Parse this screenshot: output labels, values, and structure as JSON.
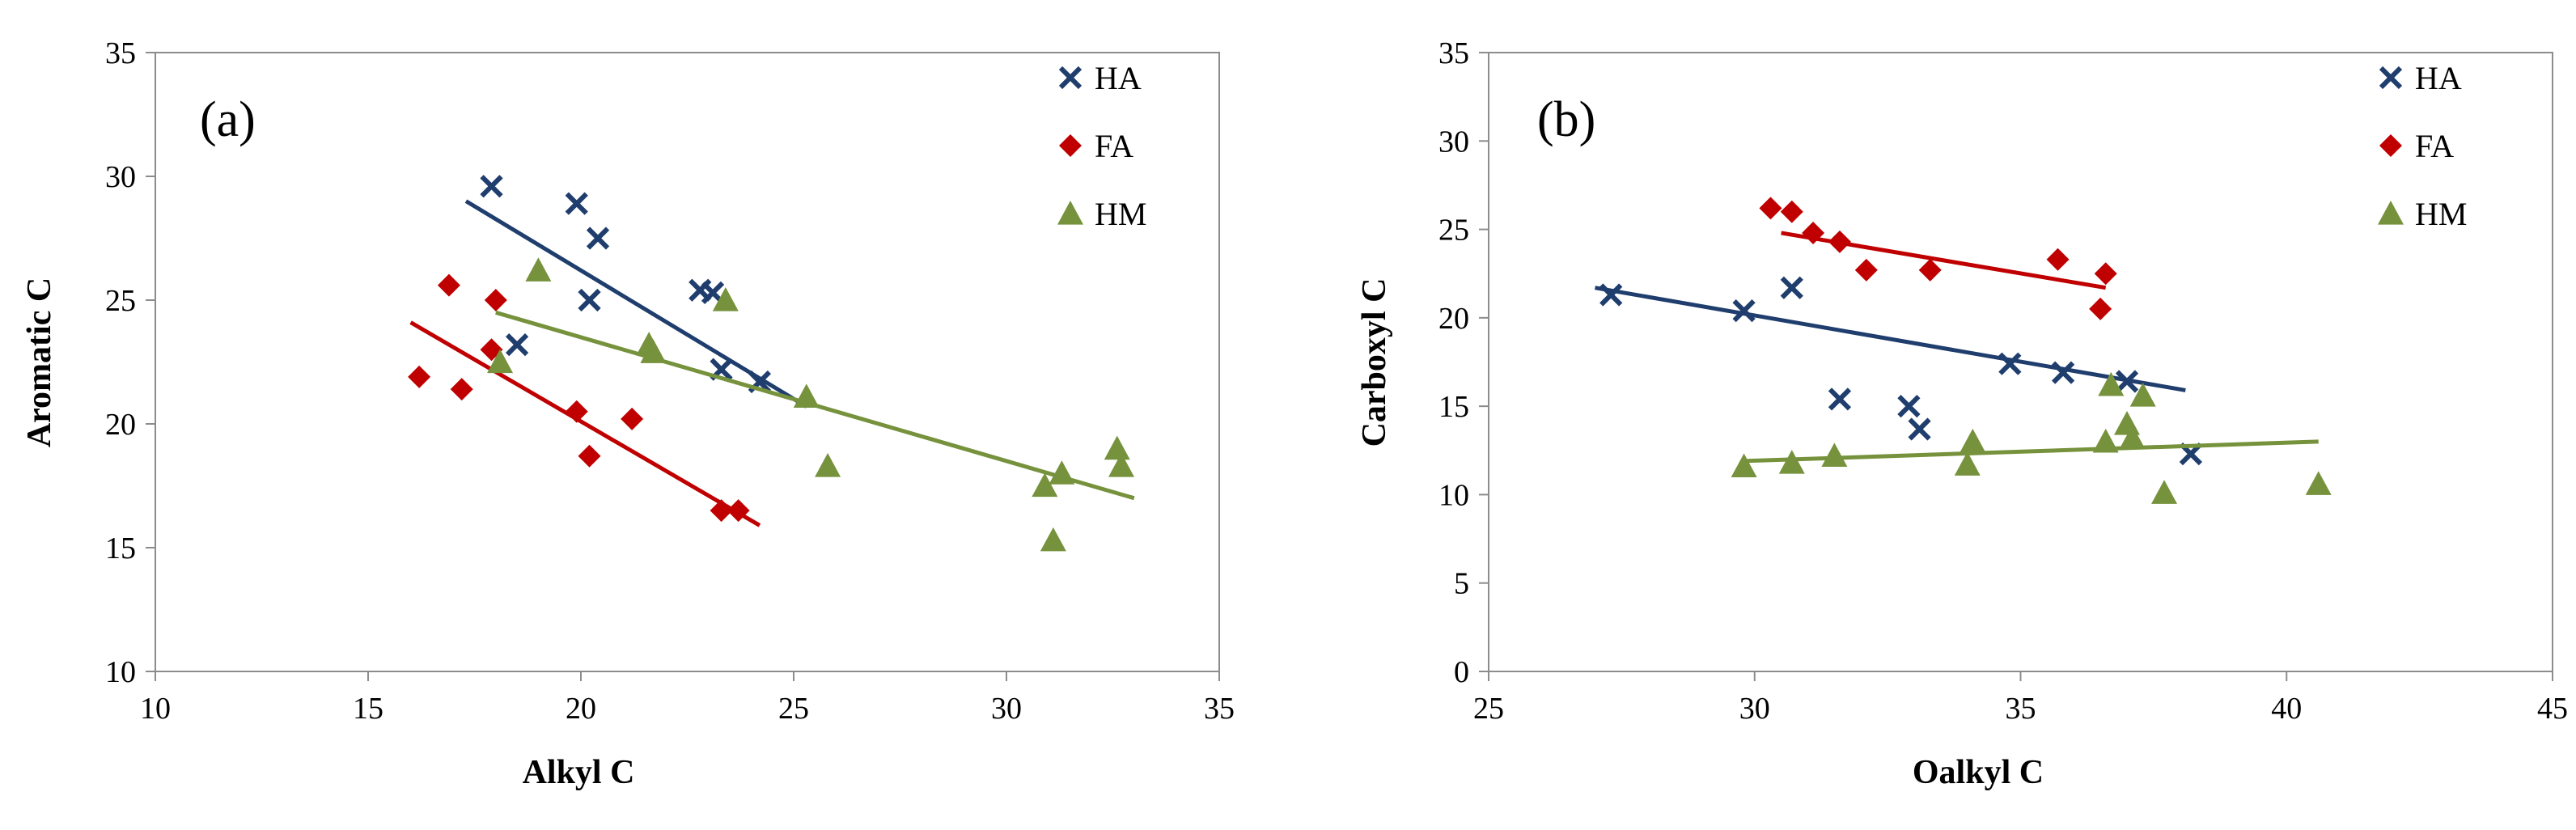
{
  "chart_data": [
    {
      "type": "scatter",
      "panel_label": "(a)",
      "xlabel": "Alkyl C",
      "ylabel": "Aromatic C",
      "xlim": [
        10,
        35
      ],
      "ylim": [
        10,
        35
      ],
      "xticks": [
        10,
        15,
        20,
        25,
        30,
        35
      ],
      "yticks": [
        10,
        15,
        20,
        25,
        30,
        35
      ],
      "grid": false,
      "legend_position": "top-right",
      "series": [
        {
          "name": "HA",
          "marker": "x",
          "color": "#1F3E6E",
          "points": [
            [
              17.9,
              29.6
            ],
            [
              19.9,
              28.9
            ],
            [
              20.4,
              27.5
            ],
            [
              20.2,
              25.0
            ],
            [
              18.5,
              23.2
            ],
            [
              22.8,
              25.4
            ],
            [
              23.1,
              25.3
            ],
            [
              23.3,
              22.2
            ],
            [
              24.2,
              21.7
            ]
          ],
          "trend": [
            [
              17.3,
              29.0
            ],
            [
              25.3,
              20.7
            ]
          ]
        },
        {
          "name": "FA",
          "marker": "diamond",
          "color": "#C00000",
          "points": [
            [
              16.9,
              25.6
            ],
            [
              18.0,
              25.0
            ],
            [
              17.9,
              23.0
            ],
            [
              16.2,
              21.9
            ],
            [
              17.2,
              21.4
            ],
            [
              19.9,
              20.5
            ],
            [
              21.2,
              20.2
            ],
            [
              20.2,
              18.7
            ],
            [
              23.3,
              16.5
            ],
            [
              23.7,
              16.5
            ]
          ],
          "trend": [
            [
              16.0,
              24.1
            ],
            [
              24.2,
              15.9
            ]
          ]
        },
        {
          "name": "HM",
          "marker": "triangle",
          "color": "#76923C",
          "points": [
            [
              19.0,
              26.2
            ],
            [
              23.4,
              25.0
            ],
            [
              21.6,
              23.2
            ],
            [
              21.7,
              22.9
            ],
            [
              18.1,
              22.5
            ],
            [
              25.3,
              21.1
            ],
            [
              25.8,
              18.3
            ],
            [
              30.9,
              17.5
            ],
            [
              31.3,
              18.0
            ],
            [
              31.1,
              15.3
            ],
            [
              32.6,
              19.0
            ],
            [
              32.7,
              18.3
            ]
          ],
          "trend": [
            [
              18.0,
              24.5
            ],
            [
              33.0,
              17.0
            ]
          ]
        }
      ]
    },
    {
      "type": "scatter",
      "panel_label": "(b)",
      "xlabel": "Oalkyl C",
      "ylabel": "Carboxyl C",
      "xlim": [
        25,
        45
      ],
      "ylim": [
        0,
        35
      ],
      "xticks": [
        25,
        30,
        35,
        40,
        45
      ],
      "yticks": [
        0,
        5,
        10,
        15,
        20,
        25,
        30,
        35
      ],
      "grid": false,
      "legend_position": "top-right",
      "series": [
        {
          "name": "HA",
          "marker": "x",
          "color": "#1F3E6E",
          "points": [
            [
              27.3,
              21.3
            ],
            [
              29.8,
              20.4
            ],
            [
              30.7,
              21.7
            ],
            [
              31.6,
              15.4
            ],
            [
              32.9,
              15.0
            ],
            [
              33.1,
              13.7
            ],
            [
              34.8,
              17.4
            ],
            [
              35.8,
              16.9
            ],
            [
              37.0,
              16.4
            ],
            [
              38.2,
              12.3
            ]
          ],
          "trend": [
            [
              27.0,
              21.7
            ],
            [
              38.1,
              15.9
            ]
          ]
        },
        {
          "name": "FA",
          "marker": "diamond",
          "color": "#C00000",
          "points": [
            [
              30.3,
              26.2
            ],
            [
              30.7,
              26.0
            ],
            [
              31.1,
              24.8
            ],
            [
              31.6,
              24.3
            ],
            [
              32.1,
              22.7
            ],
            [
              33.3,
              22.7
            ],
            [
              35.7,
              23.3
            ],
            [
              36.6,
              22.5
            ],
            [
              36.5,
              20.5
            ]
          ],
          "trend": [
            [
              30.5,
              24.8
            ],
            [
              36.6,
              21.7
            ]
          ]
        },
        {
          "name": "HM",
          "marker": "triangle",
          "color": "#76923C",
          "points": [
            [
              29.8,
              11.6
            ],
            [
              30.7,
              11.8
            ],
            [
              31.5,
              12.2
            ],
            [
              34.0,
              11.7
            ],
            [
              34.1,
              13.0
            ],
            [
              36.6,
              13.0
            ],
            [
              36.7,
              16.2
            ],
            [
              37.0,
              14.0
            ],
            [
              37.1,
              13.2
            ],
            [
              37.3,
              15.6
            ],
            [
              37.7,
              10.1
            ],
            [
              40.6,
              10.6
            ]
          ],
          "trend": [
            [
              29.8,
              11.9
            ],
            [
              40.6,
              13.0
            ]
          ]
        }
      ]
    }
  ]
}
